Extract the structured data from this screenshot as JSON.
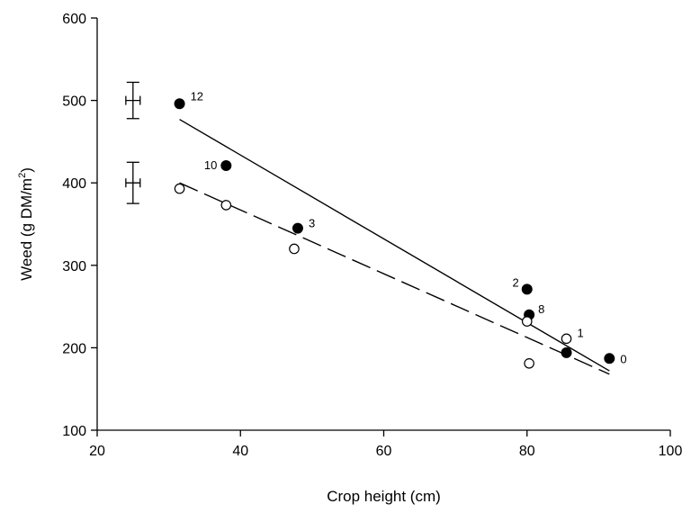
{
  "chart_data": {
    "type": "scatter",
    "xlabel": "Crop height (cm)",
    "ylabel": {
      "main": "Weed (g DM/m",
      "sup": "2",
      "close": ")"
    },
    "xlim": [
      20,
      100
    ],
    "ylim": [
      100,
      600
    ],
    "xticks": [
      "20",
      "40",
      "60",
      "80",
      "100"
    ],
    "yticks": [
      "100",
      "200",
      "300",
      "400",
      "500",
      "600"
    ],
    "grid": false,
    "series": [
      {
        "marker": "filled-circle",
        "points": [
          {
            "x": 31.5,
            "y": 496,
            "label": "12"
          },
          {
            "x": 38,
            "y": 421,
            "label": "10"
          },
          {
            "x": 48,
            "y": 345,
            "label": "3"
          },
          {
            "x": 80,
            "y": 271,
            "label": "2"
          },
          {
            "x": 80.3,
            "y": 240,
            "label": "8"
          },
          {
            "x": 85.5,
            "y": 194,
            "label": ""
          },
          {
            "x": 91.5,
            "y": 187,
            "label": "0"
          }
        ],
        "fit": {
          "style": "solid",
          "x": [
            31.5,
            91.5
          ],
          "y": [
            477,
            172
          ]
        }
      },
      {
        "marker": "open-circle",
        "points": [
          {
            "x": 31.5,
            "y": 393,
            "label": ""
          },
          {
            "x": 38,
            "y": 373,
            "label": ""
          },
          {
            "x": 47.5,
            "y": 320,
            "label": ""
          },
          {
            "x": 80,
            "y": 232,
            "label": ""
          },
          {
            "x": 85.5,
            "y": 211,
            "label": "1"
          },
          {
            "x": 80.3,
            "y": 181,
            "label": ""
          }
        ],
        "fit": {
          "style": "dashed",
          "x": [
            31.5,
            91.5
          ],
          "y": [
            400,
            168
          ]
        }
      }
    ],
    "error_bars": [
      {
        "x": 25,
        "y": 500,
        "y_err": 22,
        "x_err": 1
      },
      {
        "x": 25,
        "y": 400,
        "y_err": 25,
        "x_err": 1
      }
    ]
  }
}
